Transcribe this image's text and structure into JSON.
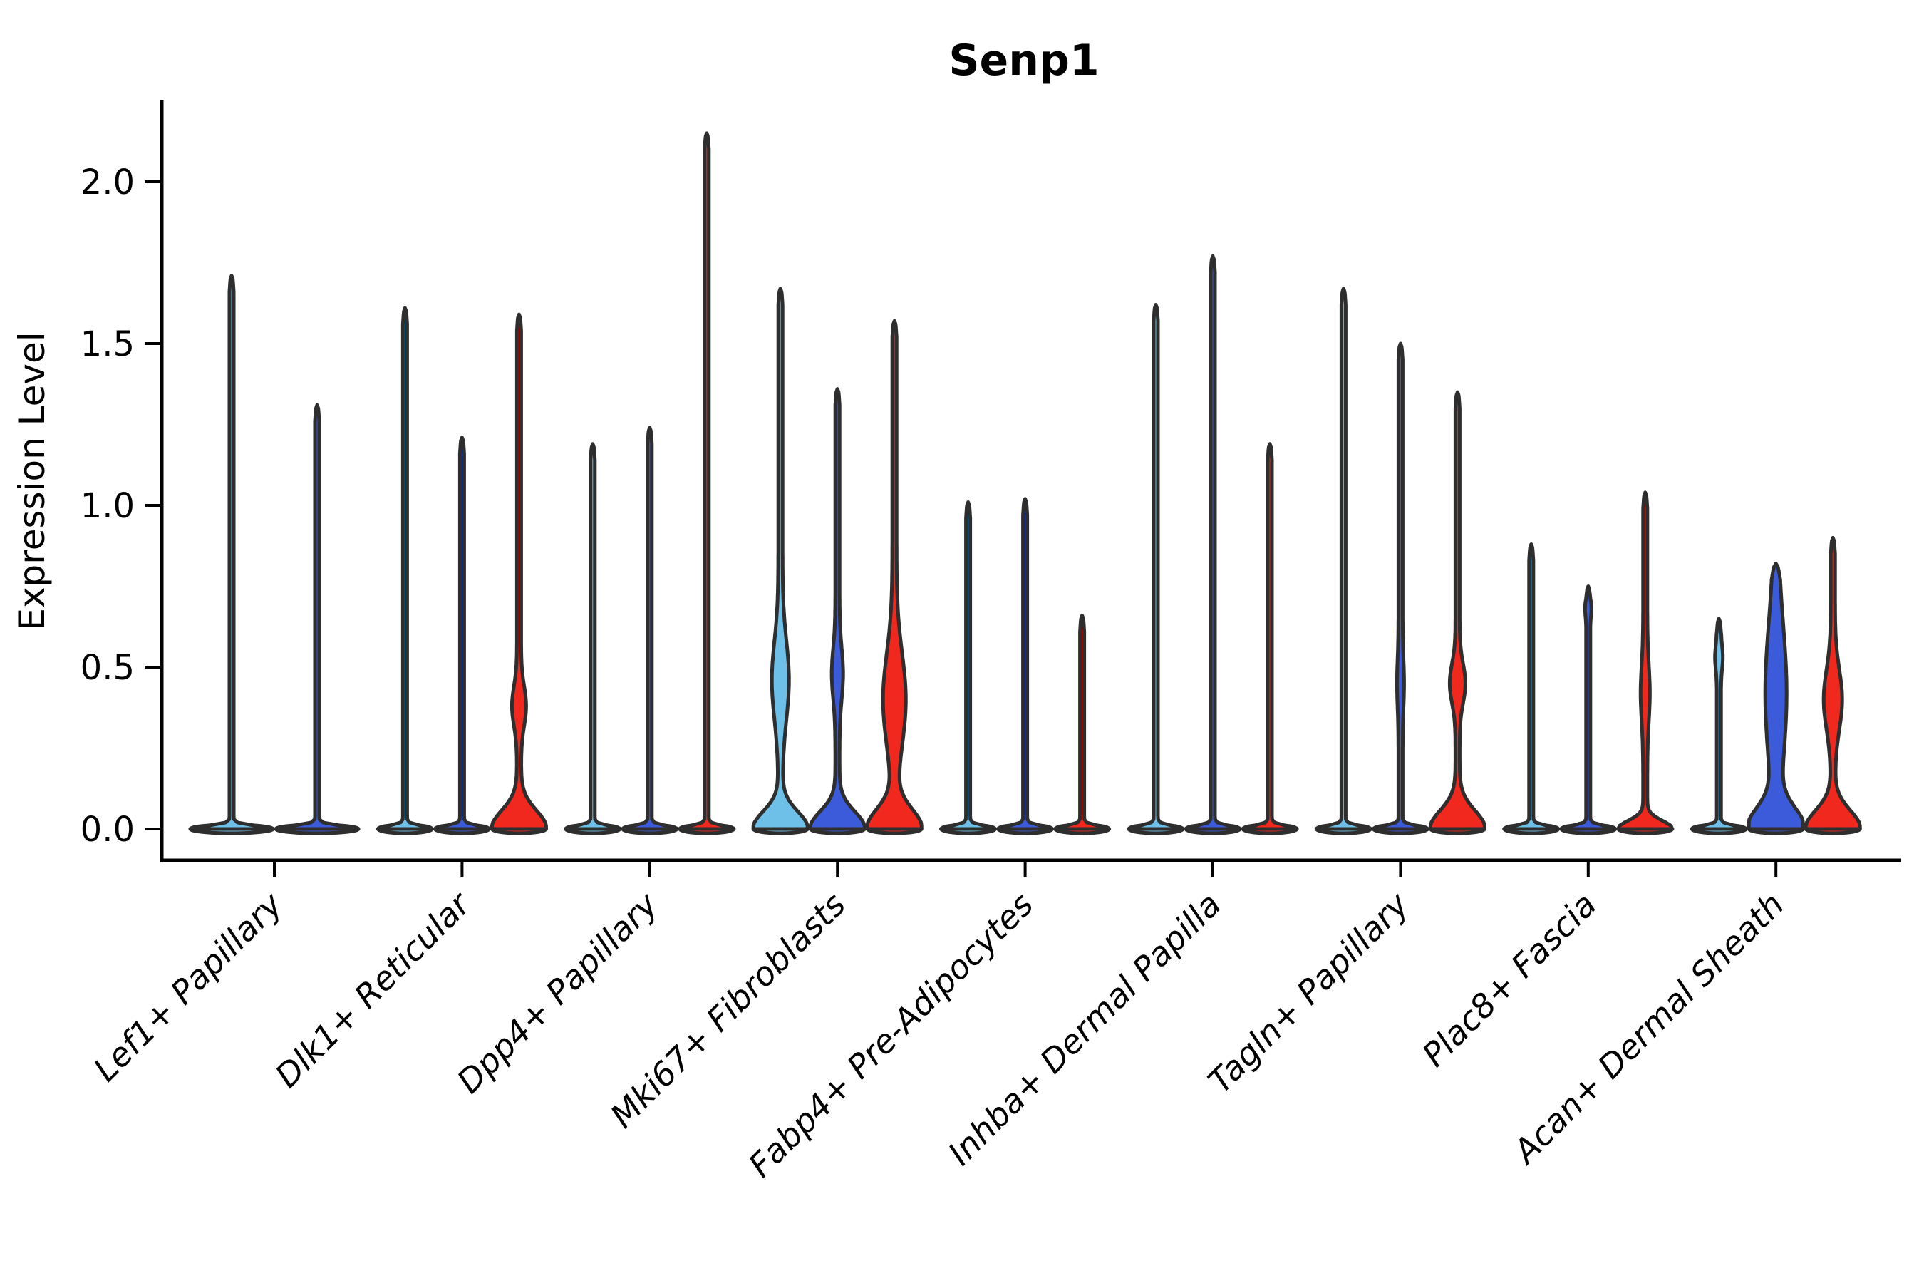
{
  "title": "Senp1",
  "y_axis": {
    "label": "Expression Level",
    "tick_labels": [
      "0.0",
      "0.5",
      "1.0",
      "1.5",
      "2.0"
    ],
    "tick_values": [
      0,
      0.5,
      1.0,
      1.5,
      2.0
    ]
  },
  "colors": {
    "series_1": "#6FC0E9",
    "series_2": "#3B5BDB",
    "series_3": "#F0281E",
    "outline": "#2E2E2E",
    "axis": "#000000",
    "background": "#FFFFFF"
  },
  "chart_data": {
    "type": "violin",
    "title": "Senp1",
    "xlabel": "",
    "ylabel": "Expression Level",
    "ylim": [
      0,
      2.25
    ],
    "yticks": [
      0,
      0.5,
      1.0,
      1.5,
      2.0
    ],
    "grid": false,
    "legend": false,
    "categories": [
      "Lef1+ Papillary",
      "Dlk1+ Reticular",
      "Dpp4+ Papillary",
      "Mki67+ Fibroblasts",
      "Fabp4+ Pre-Adipocytes",
      "Inhba+ Dermal Papilla",
      "Tagln+ Papillary",
      "Plac8+ Fascia",
      "Acan+ Dermal Sheath"
    ],
    "series_colors": {
      "c1": "#6FC0E9",
      "c2": "#3B5BDB",
      "c3": "#F0281E"
    },
    "groups": [
      {
        "label": "Lef1+ Papillary",
        "violins": [
          {
            "color": "c1",
            "max": 1.71,
            "base_sig": 0.013,
            "bulges": []
          },
          {
            "color": "c2",
            "max": 1.31,
            "base_sig": 0.013,
            "bulges": []
          }
        ]
      },
      {
        "label": "Dlk1+ Reticular",
        "violins": [
          {
            "color": "c1",
            "max": 1.61,
            "base_sig": 0.013,
            "bulges": []
          },
          {
            "color": "c2",
            "max": 1.21,
            "base_sig": 0.013,
            "bulges": []
          },
          {
            "color": "c3",
            "max": 1.59,
            "base_sig": 0.08,
            "bulges": [
              {
                "c": 0.38,
                "a": 7,
                "s": 0.085
              }
            ]
          }
        ]
      },
      {
        "label": "Dpp4+ Papillary",
        "violins": [
          {
            "color": "c1",
            "max": 1.19,
            "base_sig": 0.013,
            "bulges": []
          },
          {
            "color": "c2",
            "max": 1.24,
            "base_sig": 0.013,
            "bulges": []
          },
          {
            "color": "c3",
            "max": 2.15,
            "base_sig": 0.013,
            "bulges": []
          }
        ]
      },
      {
        "label": "Mki67+ Fibroblasts",
        "violins": [
          {
            "color": "c1",
            "max": 1.67,
            "base_sig": 0.075,
            "bulges": [
              {
                "c": 0.46,
                "a": 9,
                "s": 0.17
              }
            ]
          },
          {
            "color": "c2",
            "max": 1.36,
            "base_sig": 0.075,
            "bulges": [
              {
                "c": 0.48,
                "a": 5,
                "s": 0.11
              }
            ]
          },
          {
            "color": "c3",
            "max": 1.57,
            "base_sig": 0.085,
            "bulges": [
              {
                "c": 0.4,
                "a": 13,
                "s": 0.2
              }
            ]
          }
        ]
      },
      {
        "label": "Fabp4+ Pre-Adipocytes",
        "violins": [
          {
            "color": "c1",
            "max": 1.01,
            "base_sig": 0.013,
            "bulges": []
          },
          {
            "color": "c2",
            "max": 1.02,
            "base_sig": 0.013,
            "bulges": []
          },
          {
            "color": "c3",
            "max": 0.66,
            "base_sig": 0.013,
            "bulges": []
          }
        ]
      },
      {
        "label": "Inhba+ Dermal Papilla",
        "violins": [
          {
            "color": "c1",
            "max": 1.62,
            "base_sig": 0.013,
            "bulges": []
          },
          {
            "color": "c2",
            "max": 1.77,
            "base_sig": 0.013,
            "bulges": []
          },
          {
            "color": "c3",
            "max": 1.19,
            "base_sig": 0.013,
            "bulges": []
          }
        ]
      },
      {
        "label": "Tagln+ Papillary",
        "violins": [
          {
            "color": "c1",
            "max": 1.67,
            "base_sig": 0.013,
            "bulges": []
          },
          {
            "color": "c2",
            "max": 1.5,
            "base_sig": 0.013,
            "bulges": [
              {
                "c": 0.45,
                "a": 2,
                "s": 0.1
              }
            ]
          },
          {
            "color": "c3",
            "max": 1.35,
            "base_sig": 0.08,
            "bulges": [
              {
                "c": 0.45,
                "a": 8,
                "s": 0.085
              }
            ]
          }
        ]
      },
      {
        "label": "Plac8+ Fascia",
        "violins": [
          {
            "color": "c1",
            "max": 0.88,
            "base_sig": 0.013,
            "bulges": []
          },
          {
            "color": "c2",
            "max": 0.75,
            "base_sig": 0.013,
            "bulges": [
              {
                "c": 0.68,
                "a": 1.5,
                "s": 0.03
              }
            ]
          },
          {
            "color": "c3",
            "max": 1.04,
            "base_sig": 0.035,
            "bulges": [
              {
                "c": 0.42,
                "a": 3.5,
                "s": 0.12
              }
            ]
          }
        ]
      },
      {
        "label": "Acan+ Dermal Sheath",
        "violins": [
          {
            "color": "c1",
            "max": 0.65,
            "base_sig": 0.013,
            "bulges": [
              {
                "c": 0.53,
                "a": 2.5,
                "s": 0.05
              }
            ]
          },
          {
            "color": "c2",
            "max": 0.82,
            "base_sig": 0.09,
            "bulges": [
              {
                "c": 0.42,
                "a": 12,
                "s": 0.3
              }
            ]
          },
          {
            "color": "c3",
            "max": 0.9,
            "base_sig": 0.08,
            "bulges": [
              {
                "c": 0.4,
                "a": 10,
                "s": 0.13
              }
            ]
          }
        ]
      }
    ]
  }
}
